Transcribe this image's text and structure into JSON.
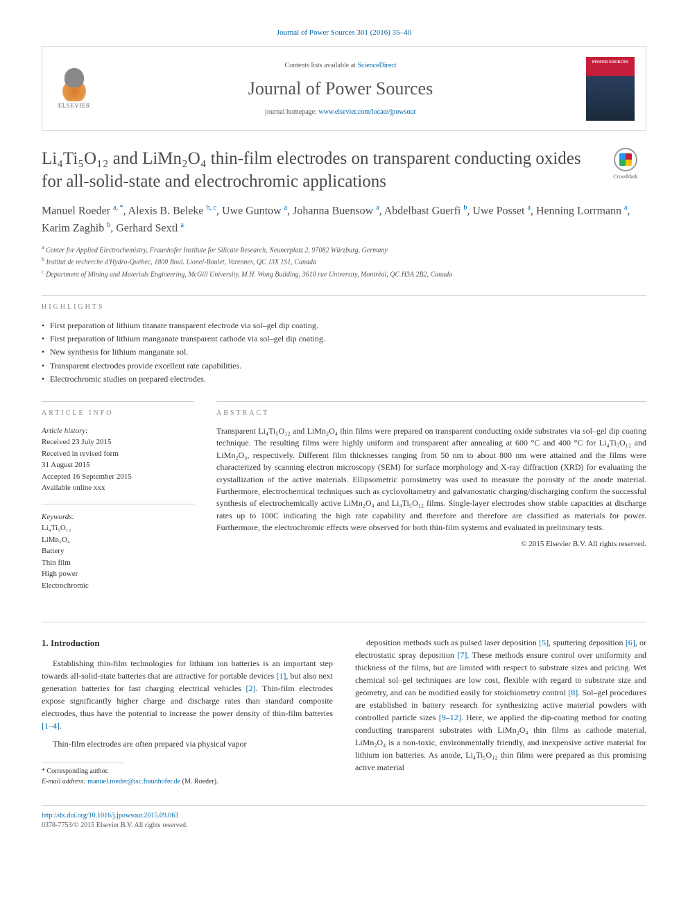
{
  "top_ref": "Journal of Power Sources 301 (2016) 35–40",
  "header": {
    "elsevier": "ELSEVIER",
    "contents_prefix": "Contents lists available at ",
    "contents_link": "ScienceDirect",
    "journal_name": "Journal of Power Sources",
    "homepage_prefix": "journal homepage: ",
    "homepage_url": "www.elsevier.com/locate/jpowsour"
  },
  "title": "Li₄Ti₅O₁₂ and LiMn₂O₄ thin-film electrodes on transparent conducting oxides for all-solid-state and electrochromic applications",
  "crossmark": "CrossMark",
  "authors_html": "Manuel Roeder <sup>a, *</sup>, Alexis B. Beleke <sup>b, c</sup>, Uwe Guntow <sup>a</sup>, Johanna Buensow <sup>a</sup>, Abdelbast Guerfi <sup>b</sup>, Uwe Posset <sup>a</sup>, Henning Lorrmann <sup>a</sup>, Karim Zaghib <sup>b</sup>, Gerhard Sextl <sup>a</sup>",
  "affiliations": [
    {
      "sup": "a",
      "text": "Center for Applied Electrochemistry, Fraunhofer Institute for Silicate Research, Neunerplatz 2, 97082 Würzburg, Germany"
    },
    {
      "sup": "b",
      "text": "Institut de recherche d'Hydro-Québec, 1800 Boul. Lionel-Boulet, Varennes, QC J3X 1S1, Canada"
    },
    {
      "sup": "c",
      "text": "Department of Mining and Materials Engineering, McGill University, M.H. Wong Building, 3610 rue University, Montréal, QC H3A 2B2, Canada"
    }
  ],
  "highlights_label": "HIGHLIGHTS",
  "highlights": [
    "First preparation of lithium titanate transparent electrode via sol–gel dip coating.",
    "First preparation of lithium manganate transparent cathode via sol–gel dip coating.",
    "New synthesis for lithium manganate sol.",
    "Transparent electrodes provide excellent rate capabilities.",
    "Electrochromic studies on prepared electrodes."
  ],
  "article_info_label": "ARTICLE INFO",
  "history_label": "Article history:",
  "history": [
    "Received 23 July 2015",
    "Received in revised form",
    "31 August 2015",
    "Accepted 16 September 2015",
    "Available online xxx"
  ],
  "keywords_label": "Keywords:",
  "keywords": [
    "Li₄Ti₅O₁₂",
    "LiMn₂O₄",
    "Battery",
    "Thin film",
    "High power",
    "Electrochromic"
  ],
  "abstract_label": "ABSTRACT",
  "abstract": "Transparent Li₄Ti₅O₁₂ and LiMn₂O₄ thin films were prepared on transparent conducting oxide substrates via sol–gel dip coating technique. The resulting films were highly uniform and transparent after annealing at 600 °C and 400 °C for Li₄Ti₅O₁₂ and LiMn₂O₄, respectively. Different film thicknesses ranging from 50 nm to about 800 nm were attained and the films were characterized by scanning electron microscopy (SEM) for surface morphology and X-ray diffraction (XRD) for evaluating the crystallization of the active materials. Ellipsometric porosimetry was used to measure the porosity of the anode material. Furthermore, electrochemical techniques such as cyclovoltametry and galvanostatic charging/discharging confirm the successful synthesis of electrochemically active LiMn₂O₄ and Li₄Ti₅O₁₂ films. Single-layer electrodes show stable capacities at discharge rates up to 100C indicating the high rate capability and therefore and therefore are classified as materials for power. Furthermore, the electrochromic effects were observed for both thin-film systems and evaluated in preliminary tests.",
  "copyright": "© 2015 Elsevier B.V. All rights reserved.",
  "intro_heading": "1. Introduction",
  "intro_p1_pre": "Establishing thin-film technologies for lithium ion batteries is an important step towards all-solid-state batteries that are attractive for portable devices ",
  "intro_p1_ref1": "[1]",
  "intro_p1_mid": ", but also next generation batteries for fast charging electrical vehicles ",
  "intro_p1_ref2": "[2]",
  "intro_p1_post": ". Thin-film electrodes expose significantly higher charge and discharge rates than standard composite electrodes, thus have the potential to increase the power density of thin-film batteries ",
  "intro_p1_ref3": "[1–4]",
  "intro_p1_end": ".",
  "intro_p2": "Thin-film electrodes are often prepared via physical vapor",
  "intro_p3_pre": "deposition methods such as pulsed laser deposition ",
  "intro_p3_ref5": "[5]",
  "intro_p3_a": ", sputtering deposition ",
  "intro_p3_ref6": "[6]",
  "intro_p3_b": ", or electrostatic spray deposition ",
  "intro_p3_ref7": "[7]",
  "intro_p3_c": ". These methods ensure control over uniformity and thickness of the films, but are limited with respect to substrate sizes and pricing. Wet chemical sol–gel techniques are low cost, flexible with regard to substrate size and geometry, and can be modified easily for stoichiometry control ",
  "intro_p3_ref8": "[8]",
  "intro_p3_d": ". Sol–gel procedures are established in battery research for synthesizing active material powders with controlled particle sizes ",
  "intro_p3_ref9": "[9–12]",
  "intro_p3_e": ". Here, we applied the dip-coating method for coating conducting transparent substrates with LiMn₂O₄ thin films as cathode material. LiMn₂O₄ is a non-toxic, environmentally friendly, and inexpensive active material for lithium ion batteries. As anode, Li₄Ti₅O₁₂ thin films were prepared as this promising active material",
  "corresponding_label": "* Corresponding author.",
  "email_label": "E-mail address: ",
  "email": "manuel.roeder@isc.fraunhofer.de",
  "email_who": " (M. Roeder).",
  "doi_url": "http://dx.doi.org/10.1016/j.jpowsour.2015.09.063",
  "issn_line": "0378-7753/© 2015 Elsevier B.V. All rights reserved."
}
